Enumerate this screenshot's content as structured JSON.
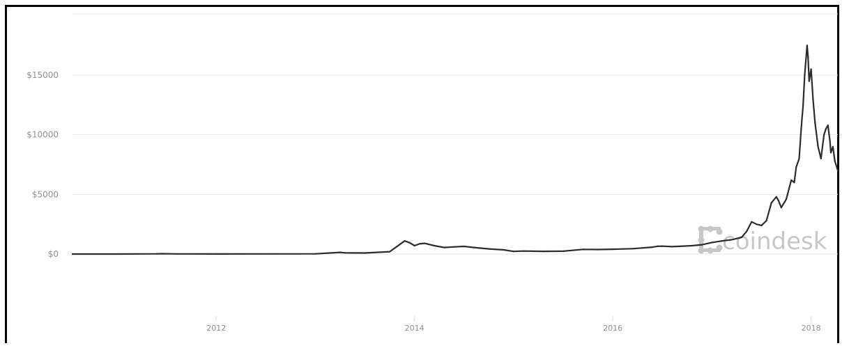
{
  "chart_data": {
    "type": "line",
    "title": "",
    "xlabel": "",
    "ylabel": "",
    "ylim": [
      -5000,
      20000
    ],
    "xlim": [
      2010.55,
      2018.27
    ],
    "grid": true,
    "y_ticks": [
      {
        "value": 0,
        "label": "$0"
      },
      {
        "value": 5000,
        "label": "$5000"
      },
      {
        "value": 10000,
        "label": "$10000"
      },
      {
        "value": 15000,
        "label": "$15000"
      }
    ],
    "x_ticks": [
      {
        "value": 2012,
        "label": "2012"
      },
      {
        "value": 2014,
        "label": "2014"
      },
      {
        "value": 2016,
        "label": "2016"
      },
      {
        "value": 2018,
        "label": "2018"
      }
    ],
    "line_color": "#2b2b2b",
    "watermark": "coindesk",
    "series": [
      {
        "x": [
          2010.55,
          2011.0,
          2011.4,
          2011.45,
          2011.6,
          2012.0,
          2012.5,
          2013.0,
          2013.25,
          2013.3,
          2013.5,
          2013.75,
          2013.85,
          2013.9,
          2013.95,
          2014.0,
          2014.05,
          2014.1,
          2014.2,
          2014.3,
          2014.4,
          2014.5,
          2014.6,
          2014.75,
          2014.9,
          2015.0,
          2015.1,
          2015.3,
          2015.5,
          2015.7,
          2015.85,
          2016.0,
          2016.2,
          2016.4,
          2016.45,
          2016.5,
          2016.6,
          2016.8,
          2016.9,
          2017.0,
          2017.1,
          2017.2,
          2017.3,
          2017.35,
          2017.4,
          2017.45,
          2017.5,
          2017.55,
          2017.6,
          2017.65,
          2017.67,
          2017.7,
          2017.75,
          2017.8,
          2017.83,
          2017.85,
          2017.88,
          2017.9,
          2017.92,
          2017.935,
          2017.96,
          2017.97,
          2017.98,
          2018.0,
          2018.02,
          2018.04,
          2018.07,
          2018.1,
          2018.13,
          2018.15,
          2018.17,
          2018.19,
          2018.2,
          2018.22,
          2018.24,
          2018.27
        ],
        "y": [
          0,
          1,
          15,
          28,
          10,
          5,
          10,
          20,
          140,
          100,
          90,
          200,
          800,
          1100,
          950,
          700,
          850,
          900,
          700,
          550,
          600,
          640,
          550,
          430,
          350,
          220,
          250,
          230,
          240,
          390,
          380,
          400,
          450,
          580,
          650,
          660,
          620,
          700,
          780,
          970,
          1100,
          1200,
          1400,
          1900,
          2700,
          2500,
          2400,
          2800,
          4300,
          4800,
          4500,
          3900,
          4600,
          6200,
          6000,
          7300,
          8000,
          10500,
          12500,
          15000,
          17500,
          16500,
          14500,
          15500,
          13000,
          11000,
          9000,
          8000,
          10000,
          10500,
          10800,
          9500,
          8500,
          9000,
          7800,
          7000
        ]
      }
    ]
  }
}
